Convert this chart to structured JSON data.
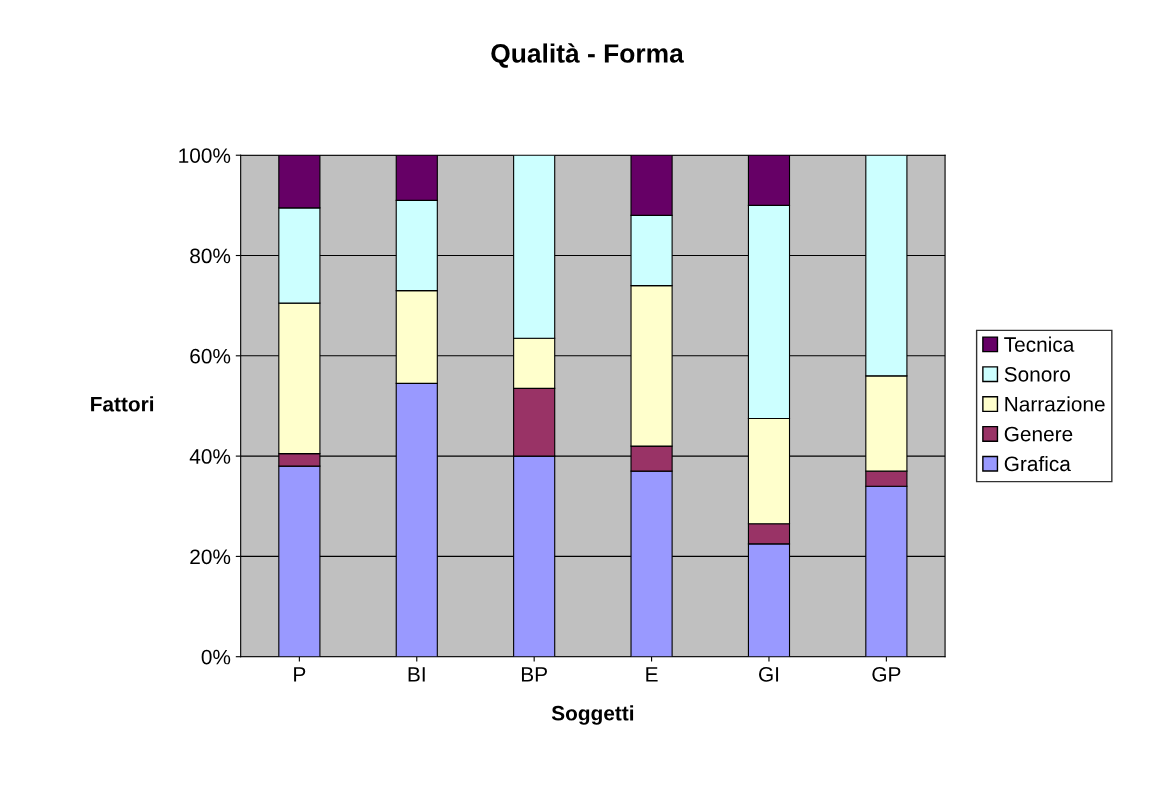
{
  "chart_data": {
    "type": "bar",
    "title": "Qualità - Forma",
    "xlabel": "Soggetti",
    "ylabel": "Fattori",
    "categories": [
      "P",
      "BI",
      "BP",
      "E",
      "GI",
      "GP"
    ],
    "stacked": true,
    "series": [
      {
        "name": "Grafica",
        "color": "#9999ff",
        "values": [
          38,
          54.5,
          40,
          37,
          22.5,
          34
        ]
      },
      {
        "name": "Genere",
        "color": "#993366",
        "values": [
          2.5,
          0,
          13.5,
          5,
          4,
          3
        ]
      },
      {
        "name": "Narrazione",
        "color": "#ffffcc",
        "values": [
          30,
          18.5,
          10,
          32,
          21,
          19
        ]
      },
      {
        "name": "Sonoro",
        "color": "#ccffff",
        "values": [
          19,
          18,
          36.5,
          14,
          42.5,
          44
        ]
      },
      {
        "name": "Tecnica",
        "color": "#660066",
        "values": [
          10.5,
          9,
          0,
          12,
          10,
          0
        ]
      }
    ],
    "ylim": [
      0,
      100
    ],
    "yticks": [
      {
        "value": 0,
        "label": "0%"
      },
      {
        "value": 20,
        "label": "20%"
      },
      {
        "value": 40,
        "label": "40%"
      },
      {
        "value": 60,
        "label": "60%"
      },
      {
        "value": 80,
        "label": "80%"
      },
      {
        "value": 100,
        "label": "100%"
      }
    ],
    "grid": "y",
    "legend": "right"
  }
}
